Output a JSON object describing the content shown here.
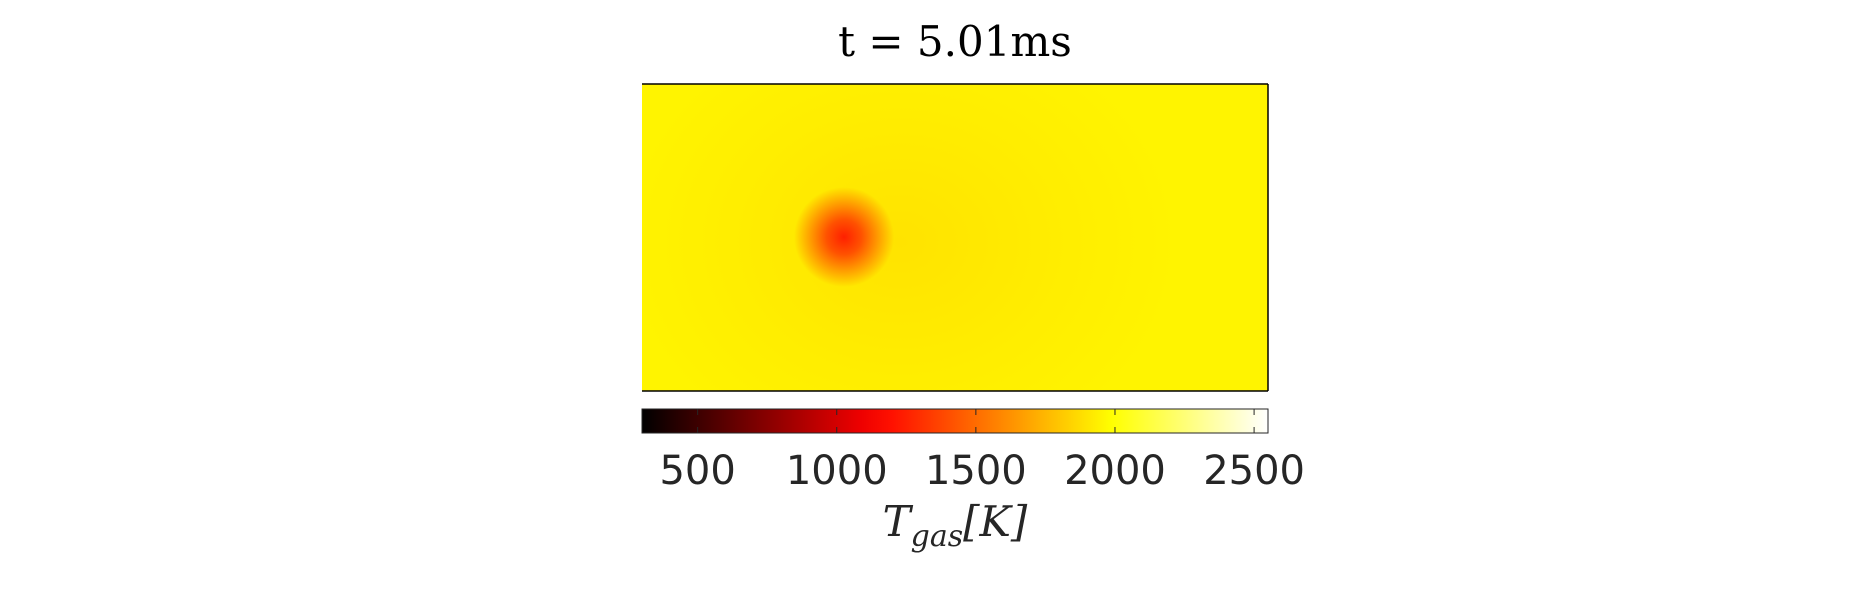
{
  "chart_data": {
    "type": "heatmap",
    "title": "t = 5.01ms",
    "field": "gas temperature",
    "background_value_K": 1950,
    "hotspot": {
      "value_K": 1250,
      "location": "left of center"
    },
    "halo_value_K": 1850,
    "colormap": "hot",
    "colorbar": {
      "orientation": "horizontal",
      "placement": "below",
      "clim": [
        300,
        2550
      ],
      "ticks": [
        500,
        1000,
        1500,
        2000,
        2500
      ],
      "tick_labels": [
        "500",
        "1000",
        "1500",
        "2000",
        "2500"
      ],
      "label": {
        "symbol": "T",
        "subscript": "gas",
        "unit": "[K]"
      }
    }
  }
}
